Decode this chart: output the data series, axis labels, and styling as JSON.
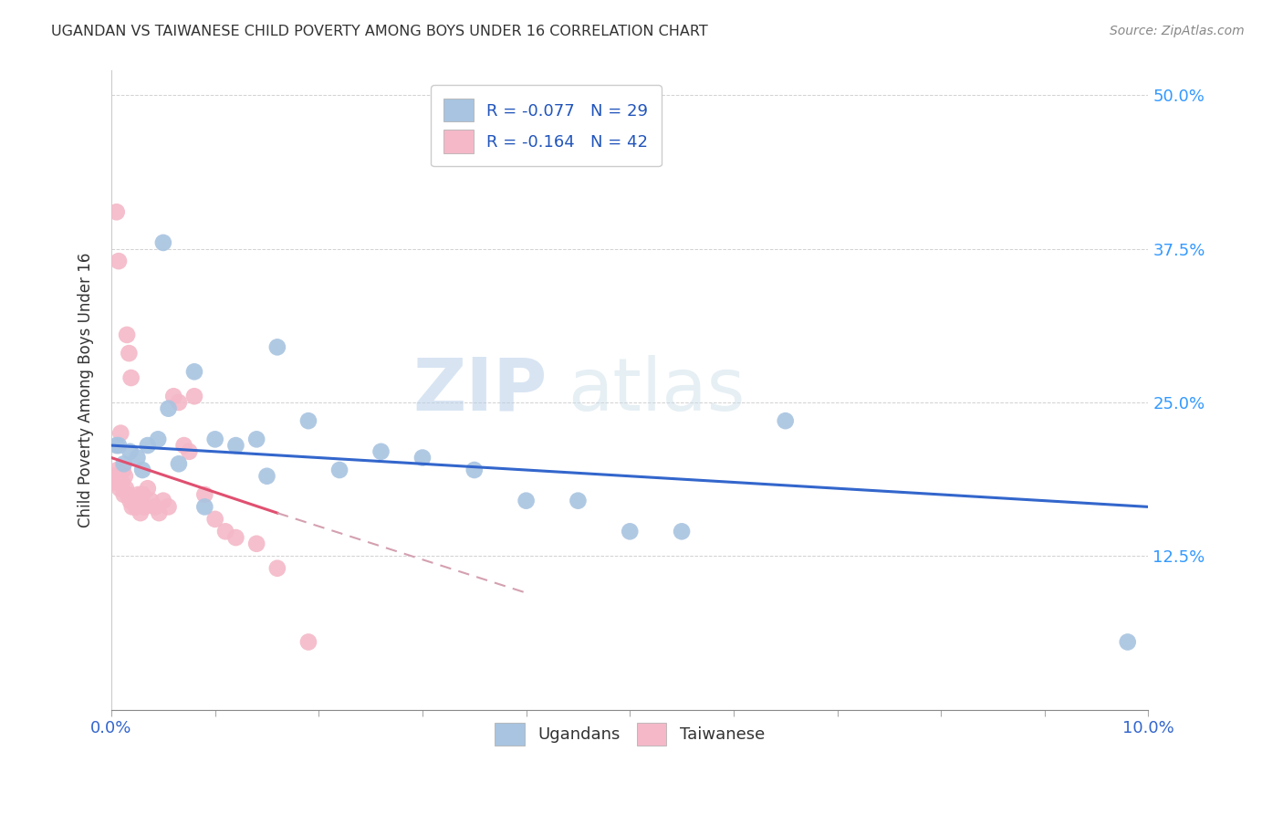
{
  "title": "UGANDAN VS TAIWANESE CHILD POVERTY AMONG BOYS UNDER 16 CORRELATION CHART",
  "source": "Source: ZipAtlas.com",
  "ylabel": "Child Poverty Among Boys Under 16",
  "xlim": [
    0.0,
    10.0
  ],
  "ylim": [
    0.0,
    52.0
  ],
  "ugandan_color": "#a8c4e0",
  "taiwanese_color": "#f4b8c8",
  "ugandan_line_color": "#3366cc",
  "taiwanese_line_color": "#e05070",
  "taiwanese_dash_color": "#d4a0b0",
  "ugandan_R": "-0.077",
  "ugandan_N": "29",
  "taiwanese_R": "-0.164",
  "taiwanese_N": "42",
  "legend_R_color": "#2255bb",
  "watermark_zip": "ZIP",
  "watermark_atlas": "atlas",
  "watermark_color_zip": "#c5d8ee",
  "watermark_color_atlas": "#c8dce8",
  "ugandan_scatter_x": [
    0.05,
    0.12,
    0.18,
    0.25,
    0.35,
    0.45,
    0.55,
    0.65,
    0.8,
    1.0,
    1.2,
    1.4,
    1.6,
    1.9,
    2.2,
    2.6,
    3.0,
    3.5,
    4.0,
    4.5,
    5.0,
    5.5,
    6.5,
    9.8,
    0.3,
    0.5,
    0.9,
    1.5,
    0.07
  ],
  "ugandan_scatter_y": [
    21.5,
    20.0,
    21.0,
    20.5,
    21.5,
    22.0,
    24.5,
    20.0,
    27.5,
    22.0,
    21.5,
    22.0,
    29.5,
    23.5,
    19.5,
    21.0,
    20.5,
    19.5,
    17.0,
    17.0,
    14.5,
    14.5,
    23.5,
    5.5,
    19.5,
    38.0,
    16.5,
    19.0,
    21.5
  ],
  "taiwanese_scatter_x": [
    0.02,
    0.04,
    0.06,
    0.08,
    0.1,
    0.12,
    0.14,
    0.16,
    0.18,
    0.2,
    0.22,
    0.24,
    0.26,
    0.28,
    0.3,
    0.32,
    0.35,
    0.38,
    0.42,
    0.46,
    0.5,
    0.55,
    0.6,
    0.65,
    0.7,
    0.75,
    0.8,
    0.9,
    1.0,
    1.1,
    1.2,
    1.4,
    1.6,
    1.9,
    0.05,
    0.07,
    0.09,
    0.11,
    0.13,
    0.15,
    0.17,
    0.19
  ],
  "taiwanese_scatter_y": [
    19.0,
    18.5,
    19.5,
    18.0,
    18.5,
    17.5,
    18.0,
    17.5,
    17.0,
    16.5,
    17.0,
    16.5,
    17.5,
    16.0,
    17.5,
    16.5,
    18.0,
    17.0,
    16.5,
    16.0,
    17.0,
    16.5,
    25.5,
    25.0,
    21.5,
    21.0,
    25.5,
    17.5,
    15.5,
    14.5,
    14.0,
    13.5,
    11.5,
    5.5,
    40.5,
    36.5,
    22.5,
    19.5,
    19.0,
    30.5,
    29.0,
    27.0
  ],
  "ugandan_line_x0": 0.0,
  "ugandan_line_y0": 21.5,
  "ugandan_line_x1": 10.0,
  "ugandan_line_y1": 16.5,
  "taiwanese_solid_x0": 0.0,
  "taiwanese_solid_y0": 20.5,
  "taiwanese_solid_x1": 1.6,
  "taiwanese_solid_y1": 16.0,
  "taiwanese_dash_x0": 1.6,
  "taiwanese_dash_y0": 16.0,
  "taiwanese_dash_x1": 4.0,
  "taiwanese_dash_y1": 9.5
}
